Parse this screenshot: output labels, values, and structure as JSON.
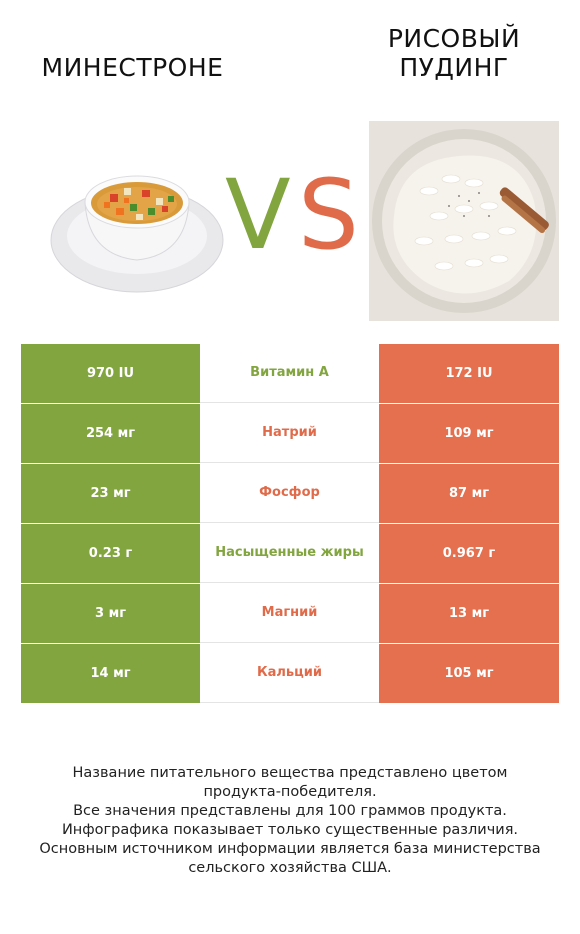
{
  "header": {
    "left_title": "МИНЕСТРОНЕ",
    "right_title_line1": "РИСОВЫЙ",
    "right_title_line2": "ПУДИНГ",
    "vs_v": "V",
    "vs_s": "S"
  },
  "colors": {
    "left_accent": "#82a540",
    "right_accent": "#e5704f"
  },
  "rows": [
    {
      "left": "970 IU",
      "nutrient": "Витамин А",
      "right": "172 IU",
      "winner": "left"
    },
    {
      "left": "254 мг",
      "nutrient": "Натрий",
      "right": "109 мг",
      "winner": "right"
    },
    {
      "left": "23 мг",
      "nutrient": "Фосфор",
      "right": "87 мг",
      "winner": "right"
    },
    {
      "left": "0.23 г",
      "nutrient": "Насыщенные жиры",
      "right": "0.967 г",
      "winner": "left"
    },
    {
      "left": "3 мг",
      "nutrient": "Магний",
      "right": "13 мг",
      "winner": "right"
    },
    {
      "left": "14 мг",
      "nutrient": "Кальций",
      "right": "105 мг",
      "winner": "right"
    }
  ],
  "footnote": [
    "Название питательного вещества представлено цветом",
    "продукта-победителя.",
    "Все значения представлены для 100 граммов продукта.",
    "Инфографика показывает только существенные различия.",
    "Основным источником информации является база министерства",
    "сельского хозяйства США."
  ]
}
